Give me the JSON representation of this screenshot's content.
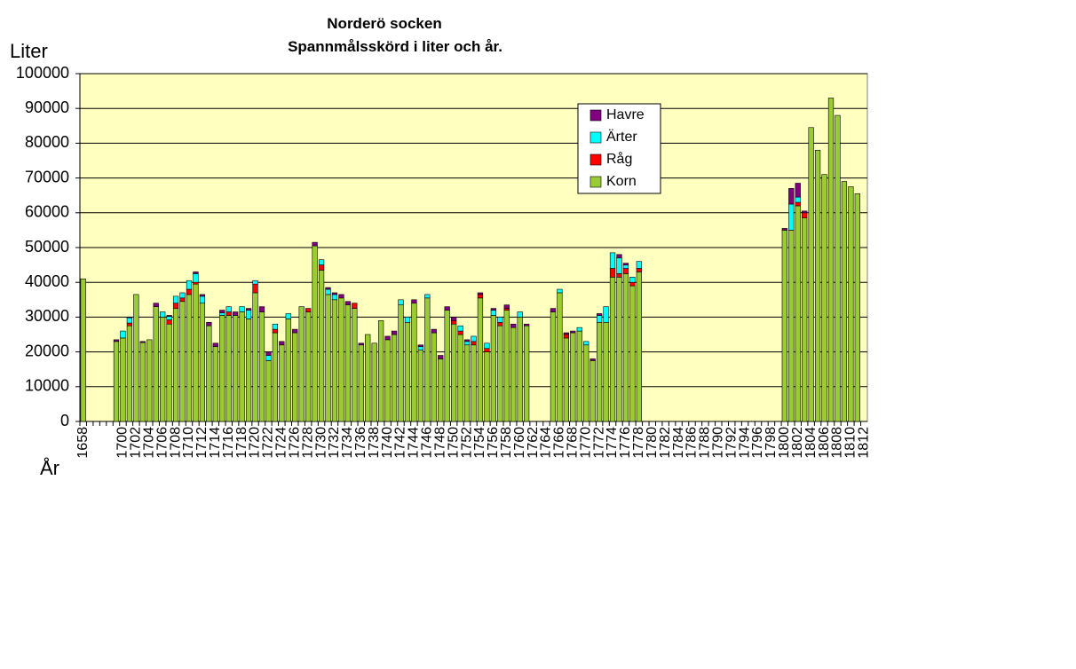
{
  "chart_data": {
    "type": "stacked_bar",
    "title": "Norderö socken",
    "subtitle": "Spannmålsskörd i liter och år.",
    "y_label": "Liter",
    "x_label": "År",
    "ylim": [
      0,
      100000
    ],
    "yticks": [
      0,
      10000,
      20000,
      30000,
      40000,
      50000,
      60000,
      70000,
      80000,
      90000,
      100000
    ],
    "grid": true,
    "background": "#ffffc0",
    "legend_position": "upper-right",
    "categories": [
      "1658",
      null,
      null,
      null,
      null,
      null,
      "1700",
      null,
      "1702",
      null,
      "1704",
      null,
      "1706",
      null,
      "1708",
      null,
      "1710",
      null,
      "1712",
      null,
      "1714",
      null,
      "1716",
      null,
      "1718",
      null,
      "1720",
      null,
      "1722",
      null,
      "1724",
      null,
      "1726",
      null,
      "1728",
      null,
      "1730",
      null,
      "1732",
      null,
      "1734",
      null,
      "1736",
      null,
      "1738",
      null,
      "1740",
      null,
      "1742",
      null,
      "1744",
      null,
      "1746",
      null,
      "1748",
      null,
      "1750",
      null,
      "1752",
      null,
      "1754",
      null,
      "1756",
      null,
      "1758",
      null,
      "1760",
      null,
      "1762",
      null,
      "1764",
      null,
      "1766",
      null,
      "1768",
      null,
      "1770",
      null,
      "1772",
      null,
      "1774",
      null,
      "1776",
      null,
      "1778",
      null,
      "1780",
      null,
      "1782",
      null,
      "1784",
      null,
      "1786",
      null,
      "1788",
      null,
      "1790",
      null,
      "1792",
      null,
      "1794",
      null,
      "1796",
      null,
      "1798",
      null,
      "1800",
      null,
      "1802",
      null,
      "1804",
      null,
      "1806",
      null,
      "1808",
      null,
      "1810",
      null,
      "1812"
    ],
    "series": [
      {
        "name": "Korn",
        "color": "#99cc33",
        "values": [
          41000,
          null,
          null,
          null,
          null,
          23000,
          24000,
          27500,
          36500,
          22700,
          23500,
          33000,
          30000,
          28000,
          32500,
          34500,
          36500,
          39500,
          34000,
          27500,
          21500,
          30500,
          30500,
          30500,
          31500,
          29500,
          37000,
          31500,
          17500,
          25500,
          22000,
          29500,
          25500,
          33000,
          31500,
          50500,
          43500,
          36500,
          35000,
          35500,
          33500,
          32500,
          22000,
          25000,
          22500,
          29000,
          23500,
          25000,
          33500,
          28500,
          34000,
          20500,
          35500,
          25500,
          18000,
          32000,
          28000,
          25000,
          22000,
          22000,
          35500,
          20000,
          30500,
          27500,
          32000,
          27000,
          30000,
          27500,
          null,
          null,
          null,
          31500,
          37000,
          24000,
          25500,
          26000,
          22000,
          17500,
          28500,
          28500,
          41500,
          41500,
          42500,
          39000,
          43000,
          null,
          null,
          null,
          null,
          null,
          null,
          null,
          null,
          null,
          null,
          null,
          null,
          null,
          null,
          null,
          null,
          null,
          null,
          null,
          null,
          null,
          55000,
          55000,
          62000,
          58500,
          84500,
          78000,
          71000,
          93000,
          88000,
          69000,
          67500,
          65500,
          null
        ]
      },
      {
        "name": "Råg",
        "color": "#ff0000",
        "values": [
          0,
          null,
          null,
          null,
          null,
          0,
          0,
          800,
          0,
          0,
          0,
          0,
          0,
          1200,
          1500,
          1000,
          1500,
          500,
          0,
          0,
          0,
          0,
          1000,
          0,
          0,
          0,
          2500,
          0,
          0,
          1000,
          0,
          0,
          0,
          0,
          1000,
          0,
          1500,
          0,
          0,
          0,
          0,
          1500,
          0,
          0,
          0,
          0,
          0,
          0,
          0,
          0,
          0,
          0,
          0,
          0,
          0,
          0,
          1000,
          1000,
          0,
          1000,
          1000,
          1000,
          0,
          1000,
          500,
          0,
          0,
          0,
          null,
          null,
          null,
          0,
          0,
          1000,
          0,
          0,
          0,
          0,
          0,
          0,
          2500,
          1000,
          1500,
          1000,
          1000,
          null,
          null,
          null,
          null,
          null,
          null,
          null,
          null,
          null,
          null,
          null,
          null,
          null,
          null,
          null,
          null,
          null,
          null,
          null,
          null,
          null,
          0,
          0,
          1000,
          1500,
          0,
          0,
          0,
          0,
          0,
          0,
          0,
          0,
          null
        ]
      },
      {
        "name": "Ärter",
        "color": "#00ffff",
        "values": [
          0,
          null,
          null,
          null,
          null,
          0,
          2000,
          1500,
          0,
          0,
          0,
          0,
          1500,
          1000,
          2000,
          1500,
          2500,
          2500,
          2000,
          0,
          0,
          700,
          1500,
          0,
          1500,
          2500,
          1000,
          0,
          1500,
          1500,
          0,
          1500,
          0,
          0,
          0,
          0,
          1500,
          1500,
          1500,
          0,
          0,
          0,
          0,
          0,
          0,
          0,
          0,
          0,
          1500,
          1500,
          0,
          1000,
          1000,
          0,
          0,
          0,
          0,
          1500,
          1000,
          1500,
          0,
          1500,
          1500,
          1500,
          0,
          0,
          1500,
          0,
          null,
          null,
          null,
          0,
          1000,
          0,
          0,
          1000,
          1000,
          0,
          2000,
          4500,
          4500,
          4500,
          1000,
          1500,
          2000,
          null,
          null,
          null,
          null,
          null,
          null,
          null,
          null,
          null,
          null,
          null,
          null,
          null,
          null,
          null,
          null,
          null,
          null,
          null,
          null,
          null,
          0,
          7500,
          1500,
          0,
          0,
          0,
          0,
          0,
          0,
          0,
          0,
          0,
          null
        ]
      },
      {
        "name": "Havre",
        "color": "#800080",
        "values": [
          0,
          null,
          null,
          null,
          null,
          500,
          0,
          200,
          0,
          300,
          0,
          1000,
          0,
          300,
          0,
          0,
          0,
          500,
          500,
          1000,
          1000,
          800,
          0,
          1000,
          0,
          500,
          0,
          1500,
          1000,
          0,
          1000,
          0,
          1000,
          0,
          0,
          1000,
          0,
          500,
          500,
          1000,
          1000,
          0,
          500,
          0,
          0,
          0,
          1000,
          1000,
          0,
          0,
          1000,
          500,
          0,
          1000,
          1000,
          1000,
          1000,
          0,
          500,
          0,
          500,
          0,
          500,
          0,
          1000,
          1000,
          0,
          500,
          null,
          null,
          null,
          1000,
          0,
          500,
          500,
          0,
          0,
          500,
          500,
          0,
          0,
          1000,
          500,
          0,
          0,
          null,
          null,
          null,
          null,
          null,
          null,
          null,
          null,
          null,
          null,
          null,
          null,
          null,
          null,
          null,
          null,
          null,
          null,
          null,
          null,
          null,
          500,
          4500,
          4000,
          500,
          0,
          0,
          0,
          0,
          0,
          0,
          0,
          0,
          null
        ]
      }
    ]
  }
}
